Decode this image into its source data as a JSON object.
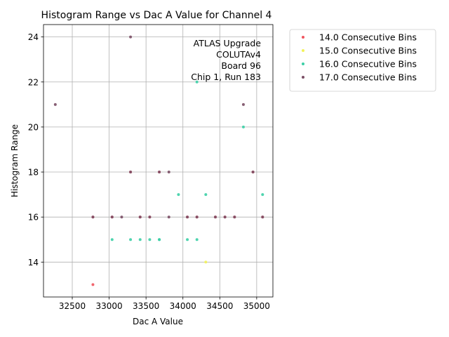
{
  "chart_data": {
    "type": "scatter",
    "title": "Histogram Range vs Dac A Value for Channel 4",
    "xlabel": "Dac A Value",
    "ylabel": "Histogram Range",
    "xlim": [
      32110,
      35220
    ],
    "ylim": [
      12.45,
      24.55
    ],
    "xticks": [
      32500,
      33000,
      33500,
      34000,
      34500,
      35000
    ],
    "yticks": [
      14,
      16,
      18,
      20,
      22,
      24
    ],
    "grid": true,
    "legend_position": "outside-right",
    "annotation": [
      "ATLAS Upgrade",
      "COLUTAv4",
      "Board 96",
      "Chip 1, Run 183"
    ],
    "series": [
      {
        "name": "14.0 Consecutive Bins",
        "color": "#f0555f",
        "points": [
          [
            32780,
            13
          ],
          [
            32780,
            16
          ],
          [
            33040,
            16
          ],
          [
            33290,
            18
          ],
          [
            33420,
            16
          ],
          [
            33550,
            16
          ],
          [
            33680,
            18
          ],
          [
            34060,
            16
          ],
          [
            34190,
            16
          ],
          [
            34440,
            16
          ],
          [
            34570,
            16
          ],
          [
            34700,
            16
          ],
          [
            34950,
            18
          ],
          [
            35080,
            16
          ]
        ]
      },
      {
        "name": "15.0 Consecutive Bins",
        "color": "#f2f25a",
        "points": [
          [
            34310,
            14
          ]
        ]
      },
      {
        "name": "16.0 Consecutive Bins",
        "color": "#3ccfa6",
        "points": [
          [
            33040,
            15
          ],
          [
            33290,
            15
          ],
          [
            33420,
            15
          ],
          [
            33550,
            15
          ],
          [
            33680,
            15
          ],
          [
            33680,
            15
          ],
          [
            33940,
            17
          ],
          [
            34060,
            15
          ],
          [
            34190,
            15
          ],
          [
            34190,
            22
          ],
          [
            34310,
            17
          ],
          [
            34820,
            20
          ],
          [
            35080,
            17
          ]
        ]
      },
      {
        "name": "17.0 Consecutive Bins",
        "color": "#7a4e65",
        "points": [
          [
            32270,
            21
          ],
          [
            32780,
            16
          ],
          [
            33040,
            16
          ],
          [
            33170,
            16
          ],
          [
            33290,
            24
          ],
          [
            33290,
            18
          ],
          [
            33420,
            16
          ],
          [
            33550,
            16
          ],
          [
            33680,
            18
          ],
          [
            33810,
            18
          ],
          [
            33810,
            16
          ],
          [
            34060,
            16
          ],
          [
            34190,
            16
          ],
          [
            34440,
            16
          ],
          [
            34570,
            16
          ],
          [
            34700,
            16
          ],
          [
            34820,
            21
          ],
          [
            34950,
            18
          ],
          [
            35080,
            16
          ]
        ]
      }
    ]
  }
}
